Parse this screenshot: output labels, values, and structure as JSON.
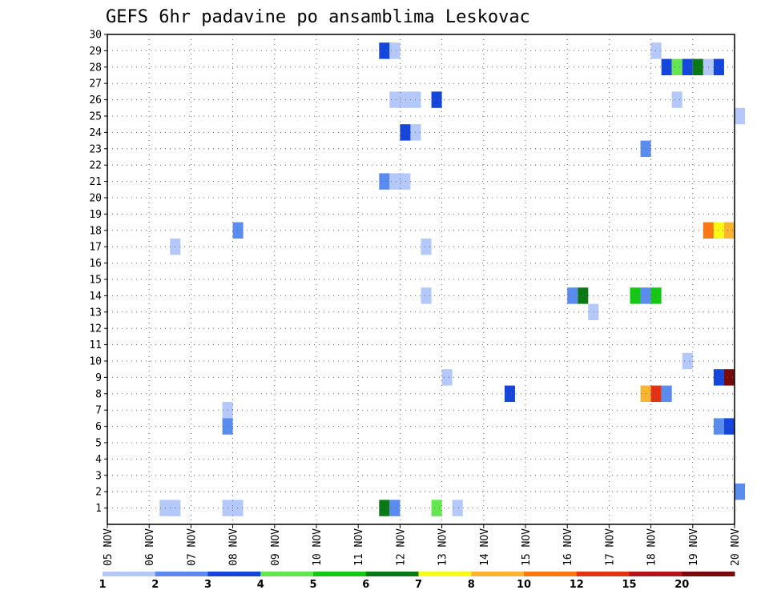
{
  "chart_data": {
    "type": "heatmap",
    "title": "GEFS 6hr padavine po ansamblima Leskovac",
    "xlabel": "",
    "ylabel": "",
    "x_ticks": [
      "05 NOV",
      "06 NOV",
      "07 NOV",
      "08 NOV",
      "09 NOV",
      "10 NOV",
      "11 NOV",
      "12 NOV",
      "13 NOV",
      "14 NOV",
      "15 NOV",
      "16 NOV",
      "17 NOV",
      "18 NOV",
      "19 NOV",
      "20 NOV"
    ],
    "x_range_days": [
      5,
      20
    ],
    "y_ticks": [
      "1",
      "2",
      "3",
      "4",
      "5",
      "6",
      "7",
      "8",
      "9",
      "10",
      "11",
      "12",
      "13",
      "14",
      "15",
      "16",
      "17",
      "18",
      "19",
      "20",
      "21",
      "22",
      "23",
      "24",
      "25",
      "26",
      "27",
      "28",
      "29",
      "30"
    ],
    "y_range": [
      0,
      30
    ],
    "grid": true,
    "colorbar": {
      "labels": [
        "1",
        "2",
        "3",
        "4",
        "5",
        "6",
        "7",
        "8",
        "10",
        "12",
        "15",
        "20"
      ],
      "colors": [
        "#b4c8fa",
        "#5a8cf0",
        "#1446dc",
        "#64e650",
        "#14c814",
        "#0a7814",
        "#fafa14",
        "#fab432",
        "#fa7814",
        "#e63214",
        "#b41414",
        "#780a0a"
      ]
    },
    "cells": [
      {
        "member": 29,
        "day": 11.5,
        "hours": 6,
        "color": "#1446dc"
      },
      {
        "member": 29,
        "day": 11.75,
        "hours": 6,
        "color": "#b4c8fa"
      },
      {
        "member": 29,
        "day": 18.0,
        "hours": 6,
        "color": "#b4c8fa"
      },
      {
        "member": 28,
        "day": 18.25,
        "hours": 6,
        "color": "#1446dc"
      },
      {
        "member": 28,
        "day": 18.5,
        "hours": 6,
        "color": "#64e650"
      },
      {
        "member": 28,
        "day": 18.75,
        "hours": 6,
        "color": "#1446dc"
      },
      {
        "member": 28,
        "day": 19.0,
        "hours": 6,
        "color": "#0a7814"
      },
      {
        "member": 28,
        "day": 19.25,
        "hours": 6,
        "color": "#b4c8fa"
      },
      {
        "member": 28,
        "day": 19.5,
        "hours": 6,
        "color": "#1446dc"
      },
      {
        "member": 26,
        "day": 11.75,
        "hours": 12,
        "color": "#b4c8fa"
      },
      {
        "member": 26,
        "day": 12.25,
        "hours": 6,
        "color": "#b4c8fa"
      },
      {
        "member": 26,
        "day": 12.75,
        "hours": 6,
        "color": "#1446dc"
      },
      {
        "member": 26,
        "day": 18.5,
        "hours": 6,
        "color": "#b4c8fa"
      },
      {
        "member": 25,
        "day": 20.0,
        "hours": 6,
        "color": "#b4c8fa"
      },
      {
        "member": 24,
        "day": 12.0,
        "hours": 6,
        "color": "#1446dc"
      },
      {
        "member": 24,
        "day": 12.25,
        "hours": 6,
        "color": "#b4c8fa"
      },
      {
        "member": 23,
        "day": 17.75,
        "hours": 6,
        "color": "#5a8cf0"
      },
      {
        "member": 21,
        "day": 11.5,
        "hours": 6,
        "color": "#5a8cf0"
      },
      {
        "member": 21,
        "day": 11.75,
        "hours": 12,
        "color": "#b4c8fa"
      },
      {
        "member": 18,
        "day": 8.0,
        "hours": 6,
        "color": "#5a8cf0"
      },
      {
        "member": 18,
        "day": 19.25,
        "hours": 6,
        "color": "#fa7814"
      },
      {
        "member": 18,
        "day": 19.5,
        "hours": 6,
        "color": "#fafa14"
      },
      {
        "member": 18,
        "day": 19.75,
        "hours": 6,
        "color": "#fab432"
      },
      {
        "member": 17,
        "day": 6.5,
        "hours": 6,
        "color": "#b4c8fa"
      },
      {
        "member": 17,
        "day": 12.5,
        "hours": 6,
        "color": "#b4c8fa"
      },
      {
        "member": 14,
        "day": 16.0,
        "hours": 6,
        "color": "#5a8cf0"
      },
      {
        "member": 14,
        "day": 16.25,
        "hours": 6,
        "color": "#0a7814"
      },
      {
        "member": 14,
        "day": 17.5,
        "hours": 6,
        "color": "#14c814"
      },
      {
        "member": 14,
        "day": 17.75,
        "hours": 6,
        "color": "#5a8cf0"
      },
      {
        "member": 14,
        "day": 18.0,
        "hours": 6,
        "color": "#14c814"
      },
      {
        "member": 14,
        "day": 12.5,
        "hours": 6,
        "color": "#b4c8fa"
      },
      {
        "member": 13,
        "day": 16.5,
        "hours": 6,
        "color": "#b4c8fa"
      },
      {
        "member": 10,
        "day": 18.75,
        "hours": 6,
        "color": "#b4c8fa"
      },
      {
        "member": 9,
        "day": 13.0,
        "hours": 6,
        "color": "#b4c8fa"
      },
      {
        "member": 9,
        "day": 19.5,
        "hours": 6,
        "color": "#1446dc"
      },
      {
        "member": 9,
        "day": 19.75,
        "hours": 6,
        "color": "#780a0a"
      },
      {
        "member": 8,
        "day": 14.5,
        "hours": 6,
        "color": "#1446dc"
      },
      {
        "member": 8,
        "day": 17.75,
        "hours": 6,
        "color": "#fab432"
      },
      {
        "member": 8,
        "day": 18.0,
        "hours": 6,
        "color": "#e63214"
      },
      {
        "member": 8,
        "day": 18.25,
        "hours": 6,
        "color": "#5a8cf0"
      },
      {
        "member": 7,
        "day": 7.75,
        "hours": 6,
        "color": "#b4c8fa"
      },
      {
        "member": 6,
        "day": 7.75,
        "hours": 6,
        "color": "#5a8cf0"
      },
      {
        "member": 6,
        "day": 19.5,
        "hours": 6,
        "color": "#5a8cf0"
      },
      {
        "member": 6,
        "day": 19.75,
        "hours": 6,
        "color": "#1446dc"
      },
      {
        "member": 2,
        "day": 20.0,
        "hours": 6,
        "color": "#5a8cf0"
      },
      {
        "member": 1,
        "day": 6.25,
        "hours": 12,
        "color": "#b4c8fa"
      },
      {
        "member": 1,
        "day": 7.75,
        "hours": 12,
        "color": "#b4c8fa"
      },
      {
        "member": 1,
        "day": 11.5,
        "hours": 6,
        "color": "#0a7814"
      },
      {
        "member": 1,
        "day": 11.75,
        "hours": 6,
        "color": "#5a8cf0"
      },
      {
        "member": 1,
        "day": 12.75,
        "hours": 6,
        "color": "#64e650"
      },
      {
        "member": 1,
        "day": 13.25,
        "hours": 6,
        "color": "#b4c8fa"
      }
    ]
  }
}
